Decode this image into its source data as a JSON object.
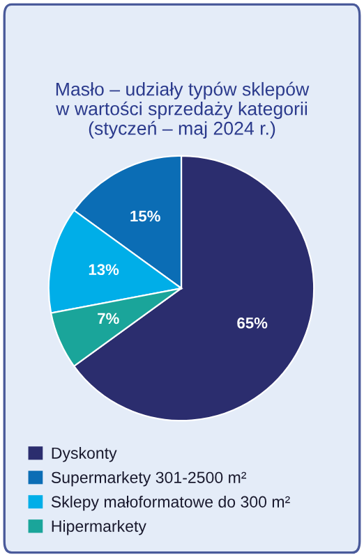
{
  "chart_data": {
    "type": "pie",
    "title": "Masło – udziały typów sklepów\nw wartości sprzedaży kategorii\n(styczeń – maj 2024 r.)",
    "categories": [
      "Dyskonty",
      "Supermarkety 301-2500 m²",
      "Sklepy małoformatowe do 300 m²",
      "Hipermarkety"
    ],
    "values": [
      65,
      15,
      13,
      7
    ],
    "colors": [
      "#2b2d6e",
      "#0b6db5",
      "#00aee8",
      "#1aa59a"
    ],
    "value_labels": [
      "65%",
      "15%",
      "13%",
      "7%"
    ],
    "legend": "bottom"
  }
}
